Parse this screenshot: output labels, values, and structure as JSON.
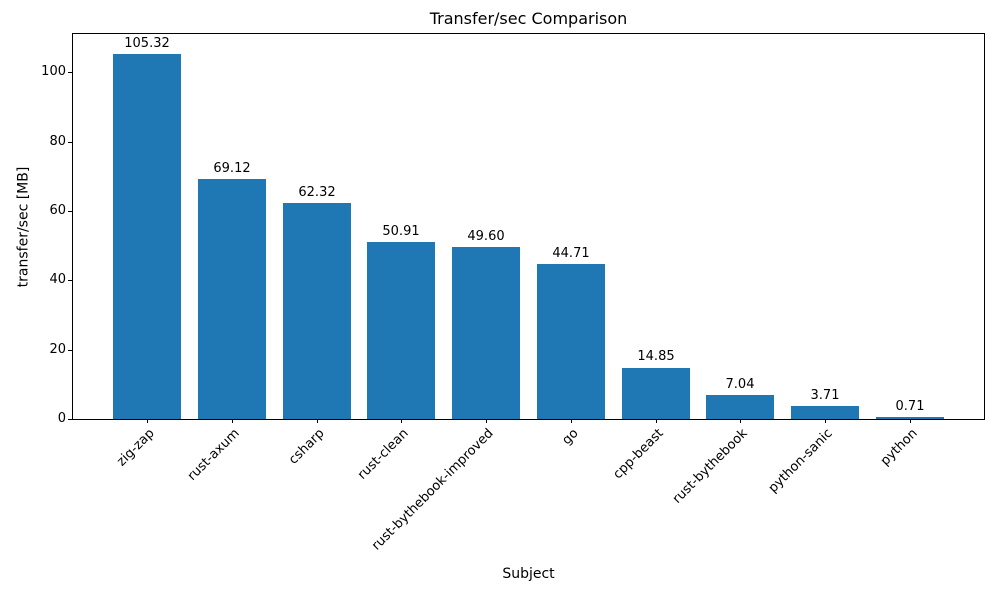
{
  "chart_data": {
    "type": "bar",
    "title": "Transfer/sec Comparison",
    "xlabel": "Subject",
    "ylabel": "transfer/sec [MB]",
    "categories": [
      "zig-zap",
      "rust-axum",
      "csharp",
      "rust-clean",
      "rust-bythebook-improved",
      "go",
      "cpp-beast",
      "rust-bythebook",
      "python-sanic",
      "python"
    ],
    "values": [
      105.32,
      69.12,
      62.32,
      50.91,
      49.6,
      44.71,
      14.85,
      7.04,
      3.71,
      0.71
    ],
    "value_labels": [
      "105.32",
      "69.12",
      "62.32",
      "50.91",
      "49.60",
      "44.71",
      "14.85",
      "7.04",
      "3.71",
      "0.71"
    ],
    "yticks": [
      0,
      20,
      40,
      60,
      80,
      100
    ],
    "ylim": [
      0,
      111
    ],
    "xtick_rotation": 45,
    "bar_color": "#1f77b4",
    "grid": false,
    "legend": "none"
  }
}
